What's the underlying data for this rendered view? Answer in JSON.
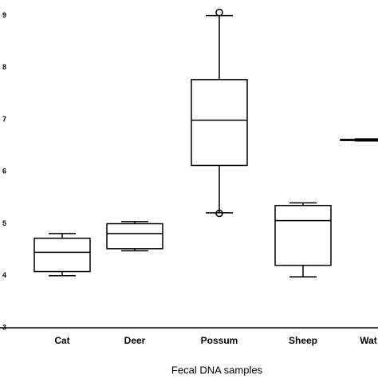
{
  "chart_data": {
    "type": "box",
    "x_label": "Fecal DNA samples",
    "categories": [
      "Cat",
      "Deer",
      "Possum",
      "Sheep",
      "Wat"
    ],
    "min": [
      4.0,
      4.48,
      5.21,
      3.98,
      6.59
    ],
    "q1": [
      4.08,
      4.52,
      6.12,
      4.2,
      6.6
    ],
    "median": [
      4.45,
      4.81,
      6.99,
      5.06,
      6.61
    ],
    "q3": [
      4.72,
      5.0,
      7.77,
      5.35,
      6.62
    ],
    "max": [
      4.81,
      5.04,
      9.0,
      5.4,
      6.63
    ],
    "outliers": [
      [],
      [],
      [
        9.06,
        5.2
      ],
      [],
      []
    ],
    "color": "#000000",
    "ylim": [
      3,
      9.3
    ],
    "yticks": [
      3,
      4,
      5,
      6,
      7,
      8,
      9
    ]
  }
}
